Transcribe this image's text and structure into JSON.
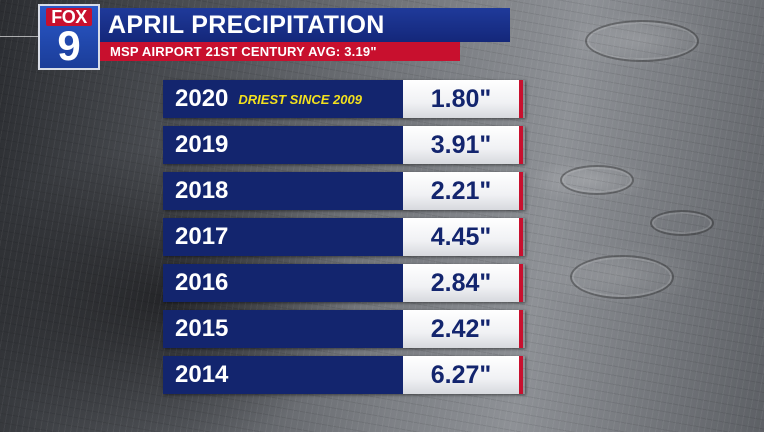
{
  "brand": {
    "logo_top": "FOX",
    "logo_bottom": "9"
  },
  "header": {
    "title": "APRIL PRECIPITATION",
    "subtitle": "MSP AIRPORT 21ST CENTURY AVG: 3.19\""
  },
  "rows": [
    {
      "year": "2020",
      "note": "DRIEST SINCE 2009",
      "value": "1.80\""
    },
    {
      "year": "2019",
      "note": "",
      "value": "3.91\""
    },
    {
      "year": "2018",
      "note": "",
      "value": "2.21\""
    },
    {
      "year": "2017",
      "note": "",
      "value": "4.45\""
    },
    {
      "year": "2016",
      "note": "",
      "value": "2.84\""
    },
    {
      "year": "2015",
      "note": "",
      "value": "2.42\""
    },
    {
      "year": "2014",
      "note": "",
      "value": "6.27\""
    }
  ],
  "colors": {
    "navy": "#13256e",
    "title_blue": "#1f3a9a",
    "red": "#c8102e",
    "note_yellow": "#f2e01e"
  }
}
